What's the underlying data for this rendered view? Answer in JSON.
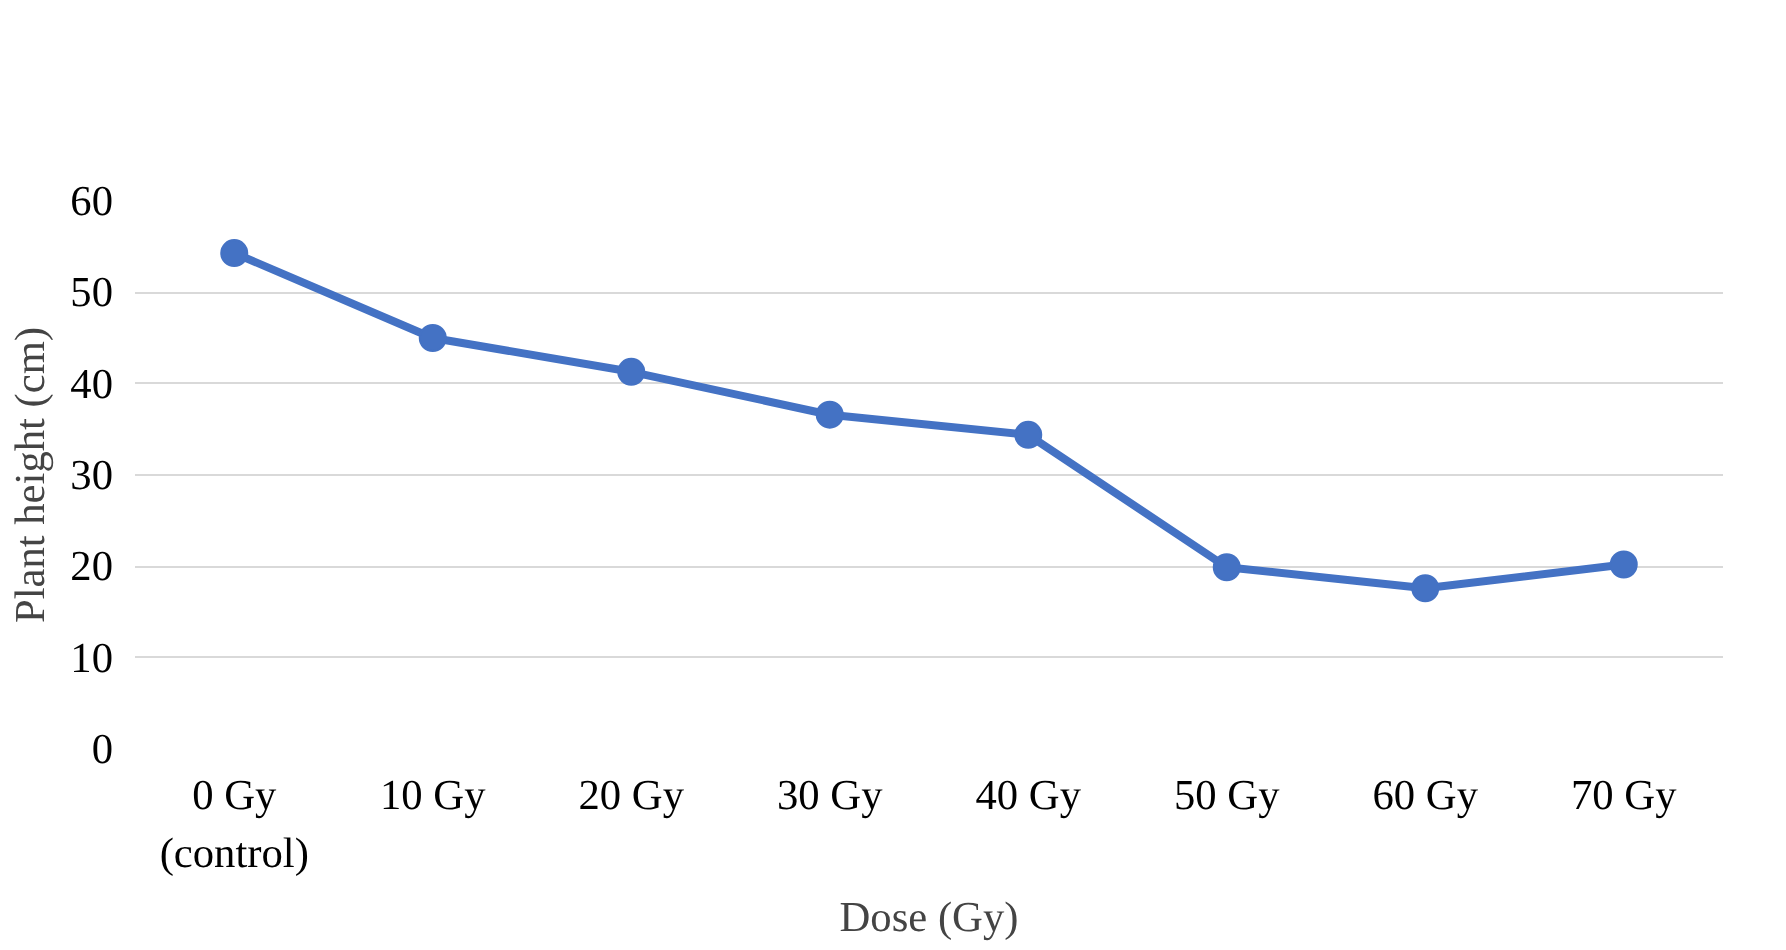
{
  "chart_data": {
    "type": "line",
    "xlabel": "Dose (Gy)",
    "ylabel": "Plant height (cm)",
    "categories": [
      "0 Gy\n(control)",
      "10 Gy",
      "20 Gy",
      "30 Gy",
      "40 Gy",
      "50 Gy",
      "60 Gy",
      "70 Gy"
    ],
    "series": [
      {
        "color": "#4472c4",
        "values": [
          54.3,
          45.0,
          41.3,
          36.6,
          34.4,
          19.9,
          17.6,
          20.2
        ]
      }
    ],
    "ylim": [
      0,
      60
    ],
    "yticks": [
      0,
      10,
      20,
      30,
      40,
      50,
      60
    ],
    "grid": "y",
    "marker": "circle",
    "line_style": "solid"
  }
}
